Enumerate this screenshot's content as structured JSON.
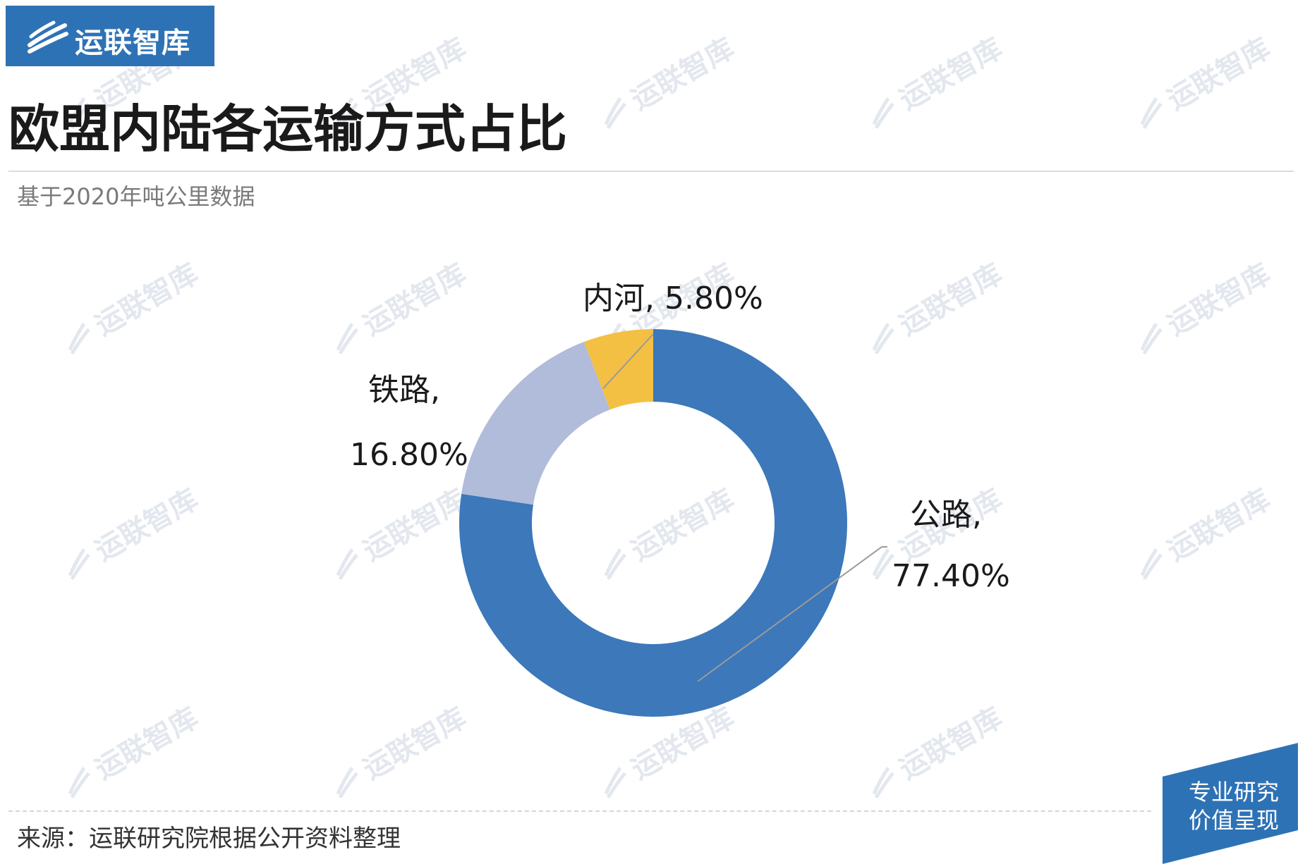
{
  "logo": {
    "text": "运联智库"
  },
  "title": "欧盟内陆各运输方式占比",
  "subtitle": "基于2020年吨公里数据",
  "watermark": {
    "text": "运联智库"
  },
  "chart_data": {
    "type": "pie",
    "donut": true,
    "categories": [
      "公路",
      "铁路",
      "内河"
    ],
    "values": [
      77.4,
      16.8,
      5.8
    ],
    "labels": [
      {
        "name": "公路,",
        "value": "77.40%"
      },
      {
        "name": "铁路,",
        "value": "16.80%"
      },
      {
        "name": "内河,",
        "value": "5.80%"
      }
    ],
    "colors": [
      "#3c78ba",
      "#b1bbda",
      "#f3c043"
    ],
    "title": "",
    "legend": "none"
  },
  "footer": {
    "source": "来源：运联研究院根据公开资料整理"
  },
  "badge": {
    "line1": "专业研究",
    "line2": "价值呈现"
  },
  "colors": {
    "brand": "#2e72b6",
    "leader_line": "#9a9a9a"
  }
}
